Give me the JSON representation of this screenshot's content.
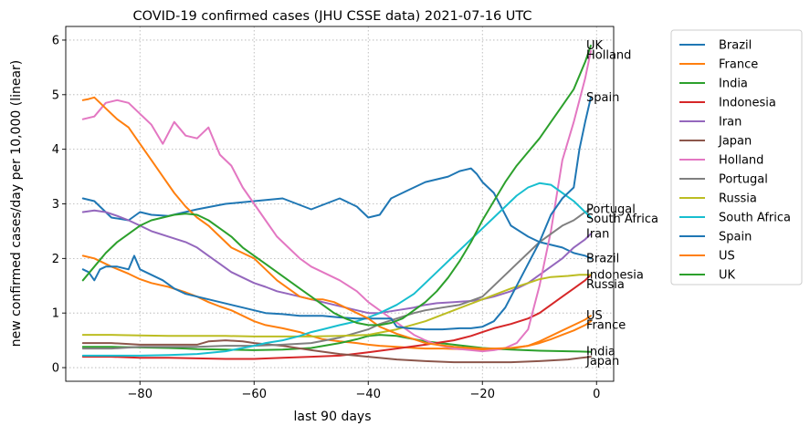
{
  "chart_data": {
    "type": "line",
    "title": "COVID-19 confirmed cases (JHU CSSE data) 2021-07-16 UTC",
    "xlabel": "last 90 days",
    "ylabel": "new confirmed cases/day per 10,000 (linear)",
    "xlim": [
      -93,
      3
    ],
    "ylim": [
      -0.25,
      6.25
    ],
    "xticks": [
      -80,
      -60,
      -40,
      -20,
      0
    ],
    "xtick_labels": [
      "−80",
      "−60",
      "−40",
      "−20",
      "0"
    ],
    "yticks": [
      0,
      1,
      2,
      3,
      4,
      5,
      6
    ],
    "ytick_labels": [
      "0",
      "1",
      "2",
      "3",
      "4",
      "5",
      "6"
    ],
    "grid": true,
    "legend_position": "outside-right",
    "series": [
      {
        "name": "Brazil",
        "color": "#1f77b4",
        "end_label": "Brazil",
        "x": [
          -90,
          -88,
          -87,
          -85,
          -82,
          -80,
          -78,
          -75,
          -70,
          -65,
          -60,
          -55,
          -50,
          -45,
          -42,
          -40,
          -38,
          -36,
          -35,
          -33,
          -30,
          -28,
          -26,
          -24,
          -22,
          -21,
          -20,
          -18,
          -15,
          -12,
          -10,
          -8,
          -6,
          -4,
          -2,
          -1
        ],
        "y": [
          3.1,
          3.05,
          2.95,
          2.75,
          2.7,
          2.85,
          2.8,
          2.78,
          2.9,
          3.0,
          3.05,
          3.1,
          2.9,
          3.1,
          2.95,
          2.75,
          2.8,
          3.1,
          3.15,
          3.25,
          3.4,
          3.45,
          3.5,
          3.6,
          3.65,
          3.55,
          3.4,
          3.2,
          2.6,
          2.4,
          2.3,
          2.25,
          2.2,
          2.1,
          2.05,
          2.0
        ]
      },
      {
        "name": "France",
        "color": "#ff7f0e",
        "end_label": "France",
        "x": [
          -90,
          -88,
          -85,
          -82,
          -80,
          -78,
          -75,
          -72,
          -70,
          -68,
          -66,
          -64,
          -62,
          -60,
          -58,
          -55,
          -52,
          -50,
          -48,
          -45,
          -42,
          -40,
          -38,
          -35,
          -32,
          -30,
          -27,
          -24,
          -20,
          -18,
          -15,
          -12,
          -10,
          -8,
          -6,
          -4,
          -2,
          -1
        ],
        "y": [
          2.05,
          2.0,
          1.85,
          1.72,
          1.62,
          1.55,
          1.48,
          1.38,
          1.3,
          1.2,
          1.12,
          1.05,
          0.95,
          0.85,
          0.78,
          0.72,
          0.65,
          0.58,
          0.52,
          0.48,
          0.45,
          0.42,
          0.4,
          0.38,
          0.36,
          0.35,
          0.35,
          0.34,
          0.33,
          0.33,
          0.35,
          0.4,
          0.45,
          0.52,
          0.6,
          0.68,
          0.78,
          0.85
        ]
      },
      {
        "name": "India",
        "color": "#2ca02c",
        "end_label": "India",
        "x": [
          -90,
          -85,
          -80,
          -75,
          -72,
          -70,
          -65,
          -60,
          -55,
          -50,
          -45,
          -42,
          -40,
          -38,
          -35,
          -32,
          -30,
          -25,
          -20,
          -15,
          -10,
          -5,
          -1
        ],
        "y": [
          0.38,
          0.38,
          0.37,
          0.36,
          0.35,
          0.34,
          0.33,
          0.32,
          0.33,
          0.36,
          0.45,
          0.52,
          0.58,
          0.6,
          0.58,
          0.52,
          0.48,
          0.42,
          0.36,
          0.33,
          0.31,
          0.3,
          0.29
        ]
      },
      {
        "name": "Indonesia",
        "color": "#d62728",
        "end_label": "Indonesia",
        "x": [
          -90,
          -85,
          -80,
          -75,
          -70,
          -65,
          -60,
          -55,
          -50,
          -45,
          -40,
          -35,
          -30,
          -25,
          -22,
          -20,
          -18,
          -15,
          -12,
          -10,
          -8,
          -6,
          -4,
          -2,
          -1
        ],
        "y": [
          0.2,
          0.2,
          0.18,
          0.18,
          0.17,
          0.16,
          0.16,
          0.18,
          0.2,
          0.22,
          0.28,
          0.35,
          0.42,
          0.5,
          0.58,
          0.65,
          0.72,
          0.8,
          0.9,
          1.0,
          1.15,
          1.3,
          1.45,
          1.6,
          1.7
        ]
      },
      {
        "name": "Iran",
        "color": "#9467bd",
        "end_label": "Iran",
        "x": [
          -90,
          -88,
          -86,
          -84,
          -82,
          -80,
          -78,
          -75,
          -72,
          -70,
          -68,
          -66,
          -64,
          -62,
          -60,
          -58,
          -56,
          -54,
          -52,
          -50,
          -48,
          -46,
          -44,
          -42,
          -40,
          -38,
          -35,
          -32,
          -30,
          -28,
          -25,
          -22,
          -20,
          -18,
          -15,
          -12,
          -10,
          -8,
          -6,
          -4,
          -2,
          -1
        ],
        "y": [
          2.85,
          2.88,
          2.85,
          2.78,
          2.7,
          2.6,
          2.5,
          2.4,
          2.3,
          2.2,
          2.05,
          1.9,
          1.75,
          1.65,
          1.55,
          1.48,
          1.4,
          1.35,
          1.3,
          1.25,
          1.2,
          1.15,
          1.1,
          1.05,
          1.0,
          1.0,
          1.05,
          1.1,
          1.15,
          1.18,
          1.2,
          1.22,
          1.25,
          1.3,
          1.4,
          1.55,
          1.7,
          1.85,
          2.0,
          2.2,
          2.35,
          2.45
        ]
      },
      {
        "name": "Japan",
        "color": "#8c564b",
        "end_label": "Japan",
        "x": [
          -90,
          -85,
          -80,
          -75,
          -70,
          -68,
          -65,
          -62,
          -60,
          -55,
          -50,
          -45,
          -40,
          -35,
          -30,
          -25,
          -20,
          -15,
          -10,
          -5,
          -1
        ],
        "y": [
          0.45,
          0.45,
          0.42,
          0.42,
          0.42,
          0.48,
          0.5,
          0.48,
          0.45,
          0.4,
          0.32,
          0.25,
          0.2,
          0.15,
          0.12,
          0.1,
          0.1,
          0.1,
          0.12,
          0.15,
          0.2
        ]
      },
      {
        "name": "Holland",
        "color": "#e377c2",
        "end_label": "Holland",
        "x": [
          -90,
          -88,
          -86,
          -84,
          -82,
          -80,
          -78,
          -76,
          -74,
          -72,
          -70,
          -68,
          -66,
          -64,
          -62,
          -60,
          -58,
          -56,
          -54,
          -52,
          -50,
          -48,
          -45,
          -42,
          -40,
          -38,
          -36,
          -34,
          -32,
          -30,
          -28,
          -25,
          -22,
          -20,
          -18,
          -16,
          -14,
          -12,
          -10,
          -8,
          -6,
          -4,
          -2,
          -1
        ],
        "y": [
          4.55,
          4.6,
          4.85,
          4.9,
          4.85,
          4.65,
          4.45,
          4.1,
          4.5,
          4.25,
          4.2,
          4.4,
          3.9,
          3.7,
          3.3,
          3.0,
          2.7,
          2.4,
          2.2,
          2.0,
          1.85,
          1.75,
          1.6,
          1.4,
          1.2,
          1.05,
          0.9,
          0.75,
          0.6,
          0.5,
          0.42,
          0.35,
          0.32,
          0.3,
          0.32,
          0.36,
          0.45,
          0.7,
          1.5,
          2.5,
          3.8,
          4.5,
          5.3,
          5.8
        ]
      },
      {
        "name": "Portugal",
        "color": "#7f7f7f",
        "end_label": "Portugal",
        "x": [
          -90,
          -85,
          -80,
          -75,
          -70,
          -65,
          -60,
          -55,
          -50,
          -45,
          -40,
          -38,
          -35,
          -32,
          -30,
          -27,
          -24,
          -20,
          -18,
          -16,
          -14,
          -12,
          -10,
          -8,
          -6,
          -4,
          -2,
          -1
        ],
        "y": [
          0.35,
          0.35,
          0.38,
          0.38,
          0.38,
          0.4,
          0.4,
          0.42,
          0.45,
          0.55,
          0.7,
          0.8,
          0.9,
          1.0,
          1.05,
          1.1,
          1.15,
          1.3,
          1.5,
          1.7,
          1.9,
          2.1,
          2.3,
          2.45,
          2.6,
          2.7,
          2.85,
          2.9
        ]
      },
      {
        "name": "Russia",
        "color": "#bcbd22",
        "end_label": "Russia",
        "x": [
          -90,
          -85,
          -80,
          -75,
          -70,
          -65,
          -60,
          -55,
          -50,
          -45,
          -40,
          -35,
          -30,
          -25,
          -20,
          -15,
          -12,
          -10,
          -8,
          -5,
          -3,
          -1
        ],
        "y": [
          0.6,
          0.6,
          0.59,
          0.58,
          0.58,
          0.58,
          0.57,
          0.57,
          0.57,
          0.58,
          0.6,
          0.7,
          0.85,
          1.05,
          1.25,
          1.45,
          1.55,
          1.62,
          1.66,
          1.68,
          1.7,
          1.7
        ]
      },
      {
        "name": "South Africa",
        "color": "#17becf",
        "end_label": "South Africa",
        "x": [
          -90,
          -85,
          -80,
          -75,
          -70,
          -65,
          -60,
          -58,
          -55,
          -52,
          -50,
          -48,
          -45,
          -42,
          -40,
          -38,
          -35,
          -32,
          -30,
          -28,
          -25,
          -22,
          -20,
          -18,
          -16,
          -14,
          -12,
          -10,
          -8,
          -6,
          -4,
          -2,
          -1
        ],
        "y": [
          0.22,
          0.22,
          0.22,
          0.23,
          0.25,
          0.3,
          0.4,
          0.45,
          0.5,
          0.58,
          0.65,
          0.7,
          0.78,
          0.85,
          0.92,
          1.0,
          1.15,
          1.35,
          1.55,
          1.75,
          2.05,
          2.35,
          2.55,
          2.75,
          2.95,
          3.15,
          3.3,
          3.38,
          3.35,
          3.2,
          3.05,
          2.85,
          2.75
        ]
      },
      {
        "name": "Spain",
        "color": "#1f77b4",
        "end_label": "Spain",
        "x": [
          -90,
          -89,
          -88,
          -87,
          -86,
          -84,
          -82,
          -81,
          -80,
          -78,
          -76,
          -74,
          -72,
          -70,
          -68,
          -66,
          -64,
          -62,
          -60,
          -58,
          -55,
          -52,
          -50,
          -48,
          -45,
          -42,
          -40,
          -38,
          -36,
          -35,
          -33,
          -30,
          -27,
          -24,
          -22,
          -20,
          -18,
          -16,
          -14,
          -12,
          -10,
          -8,
          -6,
          -4,
          -3,
          -2,
          -1
        ],
        "y": [
          1.8,
          1.75,
          1.6,
          1.8,
          1.85,
          1.85,
          1.8,
          2.05,
          1.8,
          1.7,
          1.6,
          1.45,
          1.35,
          1.3,
          1.25,
          1.2,
          1.15,
          1.1,
          1.05,
          1.0,
          0.98,
          0.95,
          0.95,
          0.95,
          0.92,
          0.9,
          0.9,
          0.9,
          0.9,
          0.75,
          0.72,
          0.7,
          0.7,
          0.72,
          0.72,
          0.75,
          0.85,
          1.1,
          1.5,
          1.9,
          2.3,
          2.8,
          3.1,
          3.3,
          4.0,
          4.5,
          4.95
        ]
      },
      {
        "name": "US",
        "color": "#ff7f0e",
        "end_label": "US",
        "x": [
          -90,
          -89,
          -88,
          -86,
          -84,
          -82,
          -80,
          -78,
          -76,
          -74,
          -72,
          -70,
          -68,
          -66,
          -64,
          -62,
          -60,
          -58,
          -56,
          -54,
          -52,
          -50,
          -48,
          -46,
          -44,
          -42,
          -40,
          -38,
          -35,
          -32,
          -30,
          -28,
          -25,
          -22,
          -20,
          -18,
          -15,
          -12,
          -10,
          -8,
          -6,
          -4,
          -2,
          -1
        ],
        "y": [
          4.9,
          4.92,
          4.95,
          4.75,
          4.55,
          4.4,
          4.1,
          3.8,
          3.5,
          3.2,
          2.95,
          2.75,
          2.6,
          2.4,
          2.2,
          2.1,
          2.0,
          1.8,
          1.6,
          1.45,
          1.3,
          1.25,
          1.25,
          1.2,
          1.1,
          1.0,
          0.9,
          0.75,
          0.62,
          0.52,
          0.45,
          0.42,
          0.38,
          0.36,
          0.35,
          0.35,
          0.36,
          0.4,
          0.48,
          0.58,
          0.68,
          0.78,
          0.88,
          0.95
        ]
      },
      {
        "name": "UK",
        "color": "#2ca02c",
        "end_label": "UK",
        "x": [
          -90,
          -88,
          -86,
          -84,
          -82,
          -80,
          -78,
          -76,
          -74,
          -72,
          -70,
          -68,
          -66,
          -64,
          -62,
          -60,
          -58,
          -56,
          -54,
          -52,
          -50,
          -48,
          -46,
          -44,
          -42,
          -40,
          -38,
          -36,
          -34,
          -32,
          -30,
          -28,
          -26,
          -24,
          -22,
          -20,
          -18,
          -16,
          -14,
          -12,
          -10,
          -8,
          -6,
          -4,
          -2,
          -1
        ],
        "y": [
          1.6,
          1.85,
          2.1,
          2.3,
          2.45,
          2.6,
          2.7,
          2.75,
          2.8,
          2.82,
          2.8,
          2.7,
          2.55,
          2.4,
          2.2,
          2.05,
          1.9,
          1.75,
          1.6,
          1.45,
          1.3,
          1.15,
          1.0,
          0.9,
          0.82,
          0.78,
          0.78,
          0.82,
          0.9,
          1.05,
          1.2,
          1.4,
          1.65,
          1.95,
          2.3,
          2.7,
          3.05,
          3.4,
          3.7,
          3.95,
          4.2,
          4.5,
          4.8,
          5.1,
          5.6,
          5.9
        ]
      }
    ],
    "legend": [
      "Brazil",
      "France",
      "India",
      "Indonesia",
      "Iran",
      "Japan",
      "Holland",
      "Portugal",
      "Russia",
      "South Africa",
      "Spain",
      "US",
      "UK"
    ]
  }
}
